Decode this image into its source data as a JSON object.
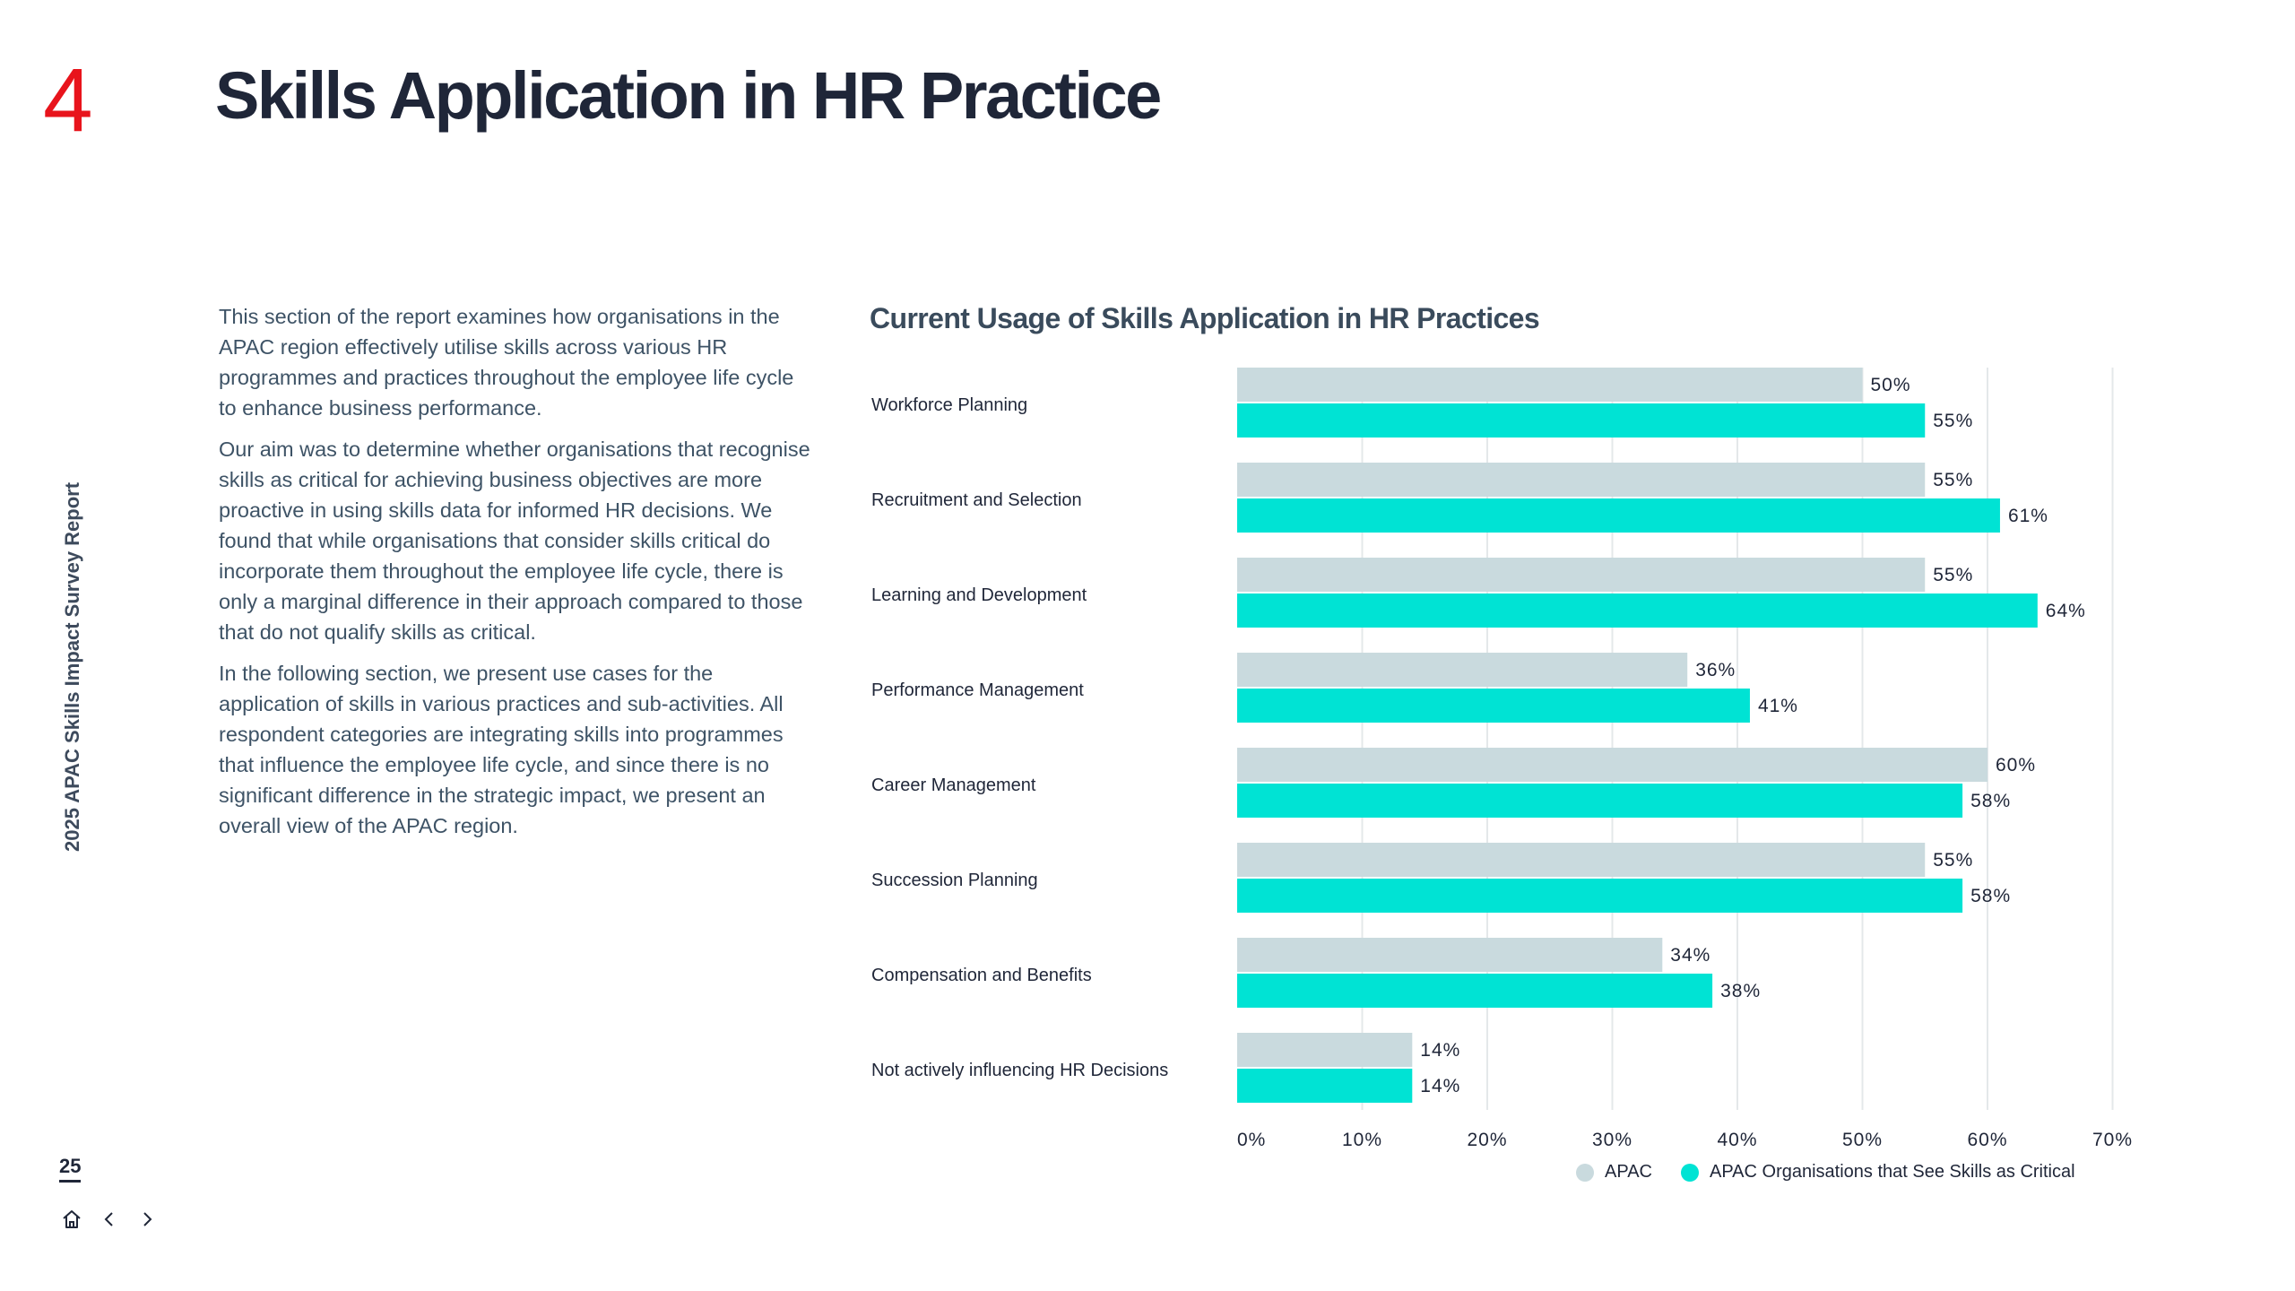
{
  "header": {
    "section_number": "4",
    "title": "Skills Application in HR Practice"
  },
  "sidebar": {
    "report_label": "2025 APAC Skills Impact Survey Report",
    "page_number": "25",
    "nav_icons": [
      "home-icon",
      "chevron-left-icon",
      "chevron-right-icon"
    ]
  },
  "intro": {
    "paragraphs": [
      "This section of the report examines how organisations in the APAC region effectively utilise skills across various HR programmes and practices throughout the employee life cycle to enhance business performance.",
      "Our aim was to determine whether organisations that recognise skills as critical for achieving business objectives are more proactive in using skills data for informed HR decisions. We found that while organisations that consider skills critical do incorporate them throughout the employee life cycle, there is only a marginal difference in their approach compared to those that do not qualify skills as critical.",
      "In the following section, we present use cases for the application of skills in various practices and sub-activities. All respondent categories are integrating skills into programmes that influence the employee life cycle, and since there is no significant difference in the strategic impact, we present an overall view of the APAC region."
    ]
  },
  "colors": {
    "accent_red": "#e8141c",
    "apac": "#c9dade",
    "critical": "#00e3d4",
    "grid": "#e4e8ea"
  },
  "chart_data": {
    "type": "bar",
    "orientation": "horizontal",
    "title": "Current Usage of Skills Application in HR Practices",
    "categories": [
      "Workforce Planning",
      "Recruitment and Selection",
      "Learning and Development",
      "Performance Management",
      "Career Management",
      "Succession Planning",
      "Compensation and Benefits",
      "Not actively influencing HR Decisions"
    ],
    "series": [
      {
        "name": "APAC",
        "color": "#c9dade",
        "values": [
          50,
          55,
          55,
          36,
          60,
          55,
          34,
          14
        ]
      },
      {
        "name": "APAC Organisations that See Skills as Critical",
        "color": "#00e3d4",
        "values": [
          55,
          61,
          64,
          41,
          58,
          58,
          38,
          14
        ]
      }
    ],
    "x_ticks": [
      0,
      10,
      20,
      30,
      40,
      50,
      60,
      70
    ],
    "x_tick_labels": [
      "0%",
      "10%",
      "20%",
      "30%",
      "40%",
      "50%",
      "60%",
      "70%"
    ],
    "xlim": [
      0,
      70
    ],
    "value_suffix": "%",
    "grid": true,
    "legend_position": "bottom-right"
  }
}
